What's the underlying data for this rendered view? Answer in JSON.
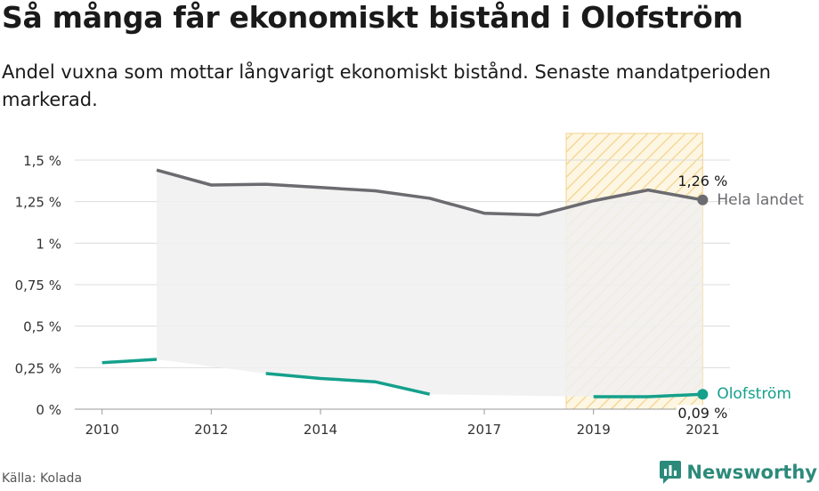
{
  "title": "Så många får ekonomiskt bistånd i Olofström",
  "subtitle": "Andel vuxna som mottar långvarigt ekonomiskt bistånd. Senaste mandatperioden markerad.",
  "source": "Källa: Kolada",
  "brand": "Newsworthy",
  "chart_data": {
    "type": "line",
    "y_ticks": [
      "0 %",
      "0,25 %",
      "0,5 %",
      "0,75 %",
      "1 %",
      "1,25 %",
      "1,5 %"
    ],
    "y_tick_values": [
      0,
      0.25,
      0.5,
      0.75,
      1,
      1.25,
      1.5
    ],
    "x_ticks": [
      "2010",
      "2012",
      "2014",
      "2017",
      "2019",
      "2021"
    ],
    "x_tick_values": [
      2010,
      2012,
      2014,
      2017,
      2019,
      2021
    ],
    "xlim": [
      2009.5,
      2021.5
    ],
    "ylim": [
      0,
      1.5
    ],
    "grid": true,
    "highlight_period": [
      2018.5,
      2021
    ],
    "series": [
      {
        "name": "Hela landet",
        "color": "#6b6b70",
        "x": [
          2011,
          2012,
          2013,
          2014,
          2015,
          2016,
          2017,
          2018,
          2019,
          2020,
          2021
        ],
        "values": [
          1.44,
          1.35,
          1.355,
          1.335,
          1.315,
          1.27,
          1.18,
          1.17,
          1.255,
          1.32,
          1.26
        ],
        "end_label": "1,26 %"
      },
      {
        "name": "Olofström",
        "color": "#14a08c",
        "x": [
          2010,
          2011,
          2012,
          2013,
          2014,
          2015,
          2016,
          2017,
          2018,
          2019,
          2020,
          2021
        ],
        "values": [
          0.28,
          0.3,
          null,
          0.215,
          0.185,
          0.165,
          0.09,
          null,
          null,
          0.075,
          0.075,
          0.09
        ],
        "end_label": "0,09 %"
      }
    ]
  }
}
